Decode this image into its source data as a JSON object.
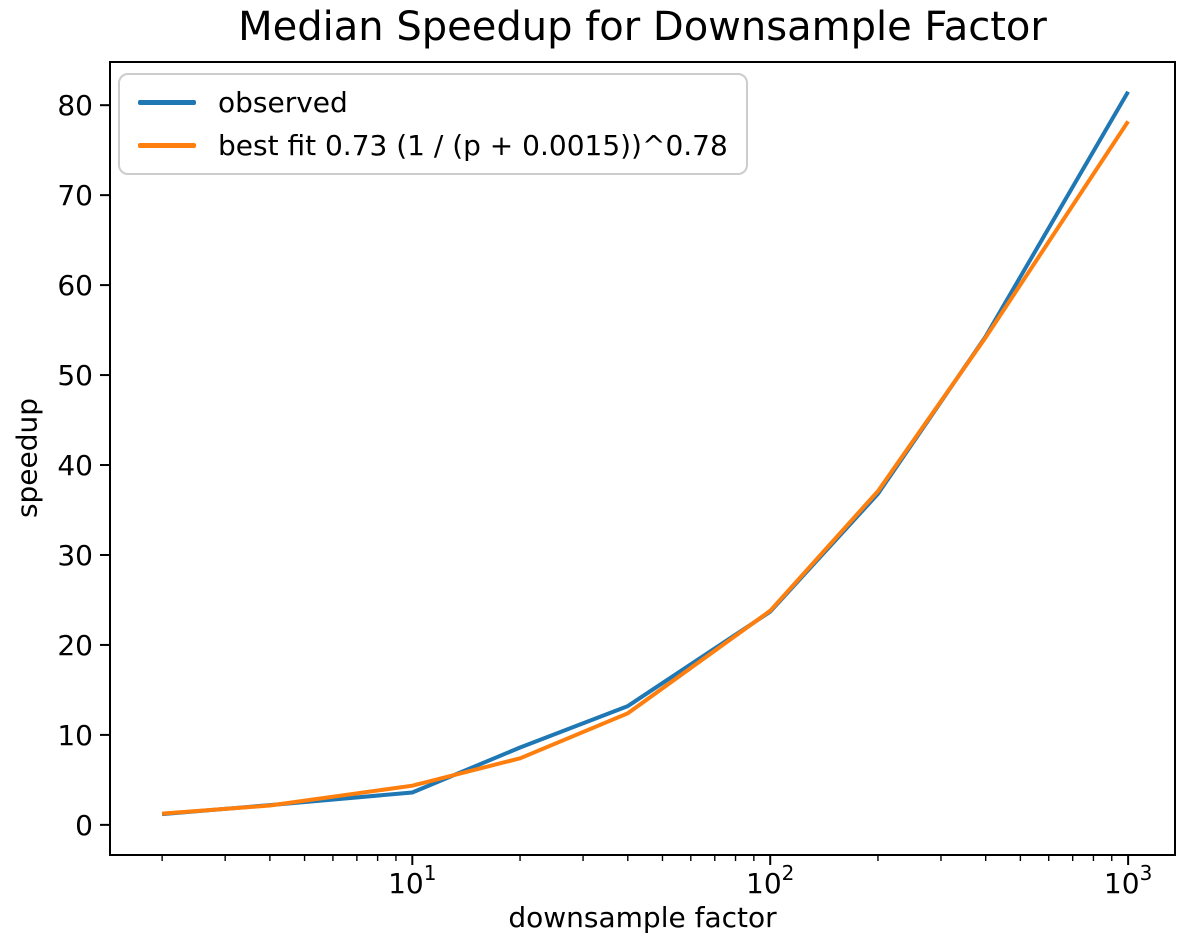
{
  "chart_data": {
    "type": "line",
    "title": "Median Speedup for Downsample Factor",
    "xlabel": "downsample factor",
    "ylabel": "speedup",
    "x_scale": "log",
    "xlim": [
      1.43,
      1352
    ],
    "ylim": [
      -3.35,
      84.8
    ],
    "grid": false,
    "x": [
      2,
      4,
      10,
      20,
      40,
      100,
      200,
      400,
      1000
    ],
    "series": [
      {
        "name": "observed",
        "label": "observed",
        "color": "#1f77b4",
        "values": [
          1.2,
          2.2,
          3.6,
          8.6,
          13.2,
          23.7,
          36.8,
          54.3,
          81.5
        ]
      },
      {
        "name": "best_fit",
        "label": "best fit 0.73 (1 / (p + 0.0015))^0.78",
        "color": "#ff7f0e",
        "values": [
          1.25,
          2.15,
          4.35,
          7.4,
          12.4,
          23.8,
          37.1,
          54.2,
          78.2
        ],
        "fit_formula": "0.73 (1 / (p + 0.0015))^0.78",
        "fit_params": {
          "coefficient": 0.73,
          "offset": 0.0015,
          "exponent": 0.78
        }
      }
    ],
    "x_major_ticks": [
      {
        "value": 10,
        "mantissa": "10",
        "exponent": "1"
      },
      {
        "value": 100,
        "mantissa": "10",
        "exponent": "2"
      },
      {
        "value": 1000,
        "mantissa": "10",
        "exponent": "3"
      }
    ],
    "x_minor_ticks": [
      2,
      3,
      4,
      5,
      6,
      7,
      8,
      9,
      20,
      30,
      40,
      50,
      60,
      70,
      80,
      90,
      200,
      300,
      400,
      500,
      600,
      700,
      800,
      900
    ],
    "y_ticks": [
      0,
      10,
      20,
      30,
      40,
      50,
      60,
      70,
      80
    ],
    "legend": {
      "position": "upper left"
    },
    "line_width": 4
  }
}
